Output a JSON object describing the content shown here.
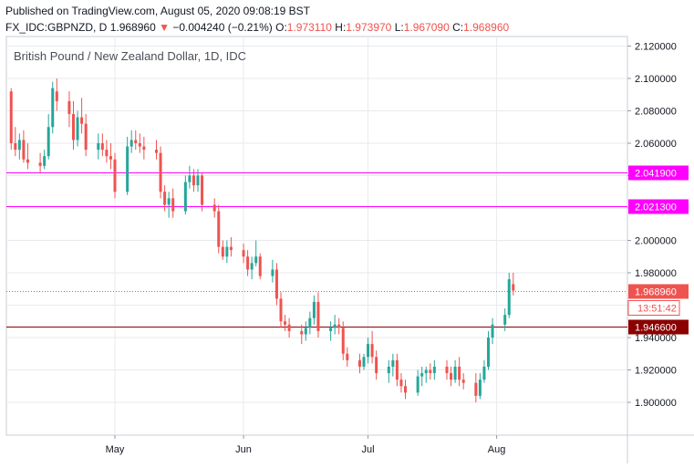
{
  "header": {
    "published": "Published on TradingView.com, August 05, 2020 09:08:19 BST",
    "symbol": "FX_IDC:GBPNZD, D",
    "last": "1.968960",
    "change": "−0.004240 (−0.21%)",
    "o_label": "O:",
    "o": "1.973110",
    "h_label": "H:",
    "h": "1.973970",
    "l_label": "L:",
    "l": "1.967090",
    "c_label": "C:",
    "c": "1.968960"
  },
  "colors": {
    "up": "#26a69a",
    "down": "#ef5350",
    "magenta": "#ff00ff",
    "support": "#8b0000",
    "grid": "#e8eaed",
    "axis_text": "#131722"
  },
  "chart_data": {
    "type": "candlestick",
    "title": "British Pound / New Zealand Dollar, 1D, IDC",
    "ylim": [
      1.88,
      2.125
    ],
    "y_ticks": [
      "2.120000",
      "2.100000",
      "2.080000",
      "2.060000",
      "2.040000",
      "2.020000",
      "2.000000",
      "1.980000",
      "1.960000",
      "1.940000",
      "1.920000",
      "1.900000"
    ],
    "x_ticks": [
      "May",
      "Jun",
      "Jul",
      "Aug"
    ],
    "horizontal_lines": [
      {
        "value": 2.0419,
        "label": "2.041900",
        "color": "#ff00ff",
        "style": "solid"
      },
      {
        "value": 2.0213,
        "label": "2.021300",
        "color": "#ff00ff",
        "style": "solid"
      },
      {
        "value": 1.9466,
        "label": "1.946600",
        "color": "#8b0000",
        "style": "solid"
      }
    ],
    "last_price": {
      "value": 1.96896,
      "label": "1.968960",
      "countdown": "13:51:42"
    },
    "candles": [
      {
        "x": "2020-04-06",
        "o": 2.092,
        "h": 2.094,
        "l": 2.056,
        "c": 2.06
      },
      {
        "x": "2020-04-07",
        "o": 2.06,
        "h": 2.07,
        "l": 2.052,
        "c": 2.056
      },
      {
        "x": "2020-04-08",
        "o": 2.056,
        "h": 2.066,
        "l": 2.05,
        "c": 2.062
      },
      {
        "x": "2020-04-09",
        "o": 2.062,
        "h": 2.068,
        "l": 2.048,
        "c": 2.05
      },
      {
        "x": "2020-04-10",
        "o": 2.05,
        "h": 2.06,
        "l": 2.044,
        "c": 2.048
      },
      {
        "x": "2020-04-13",
        "o": 2.048,
        "h": 2.054,
        "l": 2.042,
        "c": 2.046
      },
      {
        "x": "2020-04-14",
        "o": 2.046,
        "h": 2.056,
        "l": 2.044,
        "c": 2.052
      },
      {
        "x": "2020-04-15",
        "o": 2.052,
        "h": 2.078,
        "l": 2.05,
        "c": 2.07
      },
      {
        "x": "2020-04-16",
        "o": 2.07,
        "h": 2.098,
        "l": 2.066,
        "c": 2.094
      },
      {
        "x": "2020-04-17",
        "o": 2.092,
        "h": 2.1,
        "l": 2.08,
        "c": 2.086
      },
      {
        "x": "2020-04-20",
        "o": 2.086,
        "h": 2.092,
        "l": 2.07,
        "c": 2.078
      },
      {
        "x": "2020-04-21",
        "o": 2.078,
        "h": 2.086,
        "l": 2.056,
        "c": 2.062
      },
      {
        "x": "2020-04-22",
        "o": 2.062,
        "h": 2.08,
        "l": 2.058,
        "c": 2.076
      },
      {
        "x": "2020-04-23",
        "o": 2.076,
        "h": 2.088,
        "l": 2.066,
        "c": 2.072
      },
      {
        "x": "2020-04-24",
        "o": 2.072,
        "h": 2.078,
        "l": 2.052,
        "c": 2.056
      },
      {
        "x": "2020-04-27",
        "o": 2.056,
        "h": 2.066,
        "l": 2.05,
        "c": 2.06
      },
      {
        "x": "2020-04-28",
        "o": 2.06,
        "h": 2.066,
        "l": 2.052,
        "c": 2.056
      },
      {
        "x": "2020-04-29",
        "o": 2.056,
        "h": 2.062,
        "l": 2.048,
        "c": 2.052
      },
      {
        "x": "2020-04-30",
        "o": 2.052,
        "h": 2.06,
        "l": 2.044,
        "c": 2.05
      },
      {
        "x": "2020-05-01",
        "o": 2.05,
        "h": 2.054,
        "l": 2.026,
        "c": 2.03
      },
      {
        "x": "2020-05-04",
        "o": 2.03,
        "h": 2.064,
        "l": 2.028,
        "c": 2.058
      },
      {
        "x": "2020-05-05",
        "o": 2.058,
        "h": 2.068,
        "l": 2.054,
        "c": 2.062
      },
      {
        "x": "2020-05-06",
        "o": 2.062,
        "h": 2.068,
        "l": 2.056,
        "c": 2.06
      },
      {
        "x": "2020-05-07",
        "o": 2.06,
        "h": 2.066,
        "l": 2.054,
        "c": 2.058
      },
      {
        "x": "2020-05-08",
        "o": 2.058,
        "h": 2.064,
        "l": 2.05,
        "c": 2.056
      },
      {
        "x": "2020-05-11",
        "o": 2.056,
        "h": 2.062,
        "l": 2.05,
        "c": 2.054
      },
      {
        "x": "2020-05-12",
        "o": 2.054,
        "h": 2.058,
        "l": 2.026,
        "c": 2.03
      },
      {
        "x": "2020-05-13",
        "o": 2.03,
        "h": 2.034,
        "l": 2.018,
        "c": 2.022
      },
      {
        "x": "2020-05-14",
        "o": 2.022,
        "h": 2.03,
        "l": 2.014,
        "c": 2.026
      },
      {
        "x": "2020-05-15",
        "o": 2.026,
        "h": 2.032,
        "l": 2.014,
        "c": 2.018
      },
      {
        "x": "2020-05-18",
        "o": 2.018,
        "h": 2.04,
        "l": 2.016,
        "c": 2.036
      },
      {
        "x": "2020-05-19",
        "o": 2.036,
        "h": 2.046,
        "l": 2.032,
        "c": 2.04
      },
      {
        "x": "2020-05-20",
        "o": 2.04,
        "h": 2.044,
        "l": 2.03,
        "c": 2.034
      },
      {
        "x": "2020-05-21",
        "o": 2.034,
        "h": 2.044,
        "l": 2.03,
        "c": 2.04
      },
      {
        "x": "2020-05-22",
        "o": 2.04,
        "h": 2.042,
        "l": 2.018,
        "c": 2.022
      },
      {
        "x": "2020-05-25",
        "o": 2.022,
        "h": 2.026,
        "l": 2.014,
        "c": 2.018
      },
      {
        "x": "2020-05-26",
        "o": 2.018,
        "h": 2.022,
        "l": 1.992,
        "c": 1.996
      },
      {
        "x": "2020-05-27",
        "o": 1.996,
        "h": 2.0,
        "l": 1.988,
        "c": 1.99
      },
      {
        "x": "2020-05-28",
        "o": 1.99,
        "h": 2.0,
        "l": 1.986,
        "c": 1.996
      },
      {
        "x": "2020-05-29",
        "o": 1.996,
        "h": 2.002,
        "l": 1.99,
        "c": 1.994
      },
      {
        "x": "2020-06-01",
        "o": 1.994,
        "h": 1.998,
        "l": 1.986,
        "c": 1.99
      },
      {
        "x": "2020-06-02",
        "o": 1.99,
        "h": 1.994,
        "l": 1.978,
        "c": 1.982
      },
      {
        "x": "2020-06-03",
        "o": 1.982,
        "h": 1.99,
        "l": 1.976,
        "c": 1.986
      },
      {
        "x": "2020-06-04",
        "o": 1.986,
        "h": 2.0,
        "l": 1.984,
        "c": 1.99
      },
      {
        "x": "2020-06-05",
        "o": 1.99,
        "h": 1.992,
        "l": 1.976,
        "c": 1.978
      },
      {
        "x": "2020-06-08",
        "o": 1.978,
        "h": 1.988,
        "l": 1.974,
        "c": 1.982
      },
      {
        "x": "2020-06-09",
        "o": 1.982,
        "h": 1.986,
        "l": 1.96,
        "c": 1.964
      },
      {
        "x": "2020-06-10",
        "o": 1.964,
        "h": 1.968,
        "l": 1.946,
        "c": 1.95
      },
      {
        "x": "2020-06-11",
        "o": 1.95,
        "h": 1.954,
        "l": 1.944,
        "c": 1.948
      },
      {
        "x": "2020-06-12",
        "o": 1.948,
        "h": 1.952,
        "l": 1.94,
        "c": 1.944
      },
      {
        "x": "2020-06-15",
        "o": 1.944,
        "h": 1.948,
        "l": 1.936,
        "c": 1.942
      },
      {
        "x": "2020-06-16",
        "o": 1.942,
        "h": 1.95,
        "l": 1.938,
        "c": 1.946
      },
      {
        "x": "2020-06-17",
        "o": 1.946,
        "h": 1.956,
        "l": 1.942,
        "c": 1.952
      },
      {
        "x": "2020-06-18",
        "o": 1.952,
        "h": 1.966,
        "l": 1.948,
        "c": 1.962
      },
      {
        "x": "2020-06-19",
        "o": 1.962,
        "h": 1.968,
        "l": 1.94,
        "c": 1.944
      },
      {
        "x": "2020-06-22",
        "o": 1.944,
        "h": 1.95,
        "l": 1.938,
        "c": 1.946
      },
      {
        "x": "2020-06-23",
        "o": 1.946,
        "h": 1.954,
        "l": 1.942,
        "c": 1.948
      },
      {
        "x": "2020-06-24",
        "o": 1.948,
        "h": 1.952,
        "l": 1.942,
        "c": 1.946
      },
      {
        "x": "2020-06-25",
        "o": 1.946,
        "h": 1.95,
        "l": 1.926,
        "c": 1.93
      },
      {
        "x": "2020-06-26",
        "o": 1.93,
        "h": 1.934,
        "l": 1.922,
        "c": 1.926
      },
      {
        "x": "2020-06-29",
        "o": 1.926,
        "h": 1.93,
        "l": 1.918,
        "c": 1.922
      },
      {
        "x": "2020-06-30",
        "o": 1.922,
        "h": 1.93,
        "l": 1.92,
        "c": 1.928
      },
      {
        "x": "2020-07-01",
        "o": 1.928,
        "h": 1.94,
        "l": 1.924,
        "c": 1.936
      },
      {
        "x": "2020-07-02",
        "o": 1.936,
        "h": 1.944,
        "l": 1.924,
        "c": 1.928
      },
      {
        "x": "2020-07-03",
        "o": 1.928,
        "h": 1.932,
        "l": 1.914,
        "c": 1.918
      },
      {
        "x": "2020-07-06",
        "o": 1.918,
        "h": 1.926,
        "l": 1.912,
        "c": 1.922
      },
      {
        "x": "2020-07-07",
        "o": 1.922,
        "h": 1.93,
        "l": 1.916,
        "c": 1.926
      },
      {
        "x": "2020-07-08",
        "o": 1.926,
        "h": 1.93,
        "l": 1.91,
        "c": 1.914
      },
      {
        "x": "2020-07-09",
        "o": 1.914,
        "h": 1.918,
        "l": 1.906,
        "c": 1.91
      },
      {
        "x": "2020-07-10",
        "o": 1.91,
        "h": 1.914,
        "l": 1.902,
        "c": 1.906
      },
      {
        "x": "2020-07-13",
        "o": 1.906,
        "h": 1.92,
        "l": 1.904,
        "c": 1.916
      },
      {
        "x": "2020-07-14",
        "o": 1.916,
        "h": 1.922,
        "l": 1.91,
        "c": 1.918
      },
      {
        "x": "2020-07-15",
        "o": 1.918,
        "h": 1.922,
        "l": 1.912,
        "c": 1.92
      },
      {
        "x": "2020-07-16",
        "o": 1.92,
        "h": 1.924,
        "l": 1.914,
        "c": 1.918
      },
      {
        "x": "2020-07-17",
        "o": 1.918,
        "h": 1.926,
        "l": 1.914,
        "c": 1.922
      },
      {
        "x": "2020-07-20",
        "o": 1.922,
        "h": 1.926,
        "l": 1.914,
        "c": 1.918
      },
      {
        "x": "2020-07-21",
        "o": 1.918,
        "h": 1.922,
        "l": 1.91,
        "c": 1.914
      },
      {
        "x": "2020-07-22",
        "o": 1.914,
        "h": 1.926,
        "l": 1.912,
        "c": 1.922
      },
      {
        "x": "2020-07-23",
        "o": 1.922,
        "h": 1.928,
        "l": 1.91,
        "c": 1.914
      },
      {
        "x": "2020-07-24",
        "o": 1.914,
        "h": 1.918,
        "l": 1.908,
        "c": 1.912
      },
      {
        "x": "2020-07-27",
        "o": 1.912,
        "h": 1.918,
        "l": 1.9,
        "c": 1.904
      },
      {
        "x": "2020-07-28",
        "o": 1.904,
        "h": 1.918,
        "l": 1.902,
        "c": 1.914
      },
      {
        "x": "2020-07-29",
        "o": 1.914,
        "h": 1.926,
        "l": 1.912,
        "c": 1.922
      },
      {
        "x": "2020-07-30",
        "o": 1.922,
        "h": 1.944,
        "l": 1.92,
        "c": 1.94
      },
      {
        "x": "2020-07-31",
        "o": 1.94,
        "h": 1.952,
        "l": 1.936,
        "c": 1.948
      },
      {
        "x": "2020-08-03",
        "o": 1.948,
        "h": 1.958,
        "l": 1.944,
        "c": 1.954
      },
      {
        "x": "2020-08-04",
        "o": 1.954,
        "h": 1.98,
        "l": 1.952,
        "c": 1.976
      },
      {
        "x": "2020-08-05",
        "o": 1.973,
        "h": 1.98,
        "l": 1.966,
        "c": 1.969
      }
    ]
  }
}
